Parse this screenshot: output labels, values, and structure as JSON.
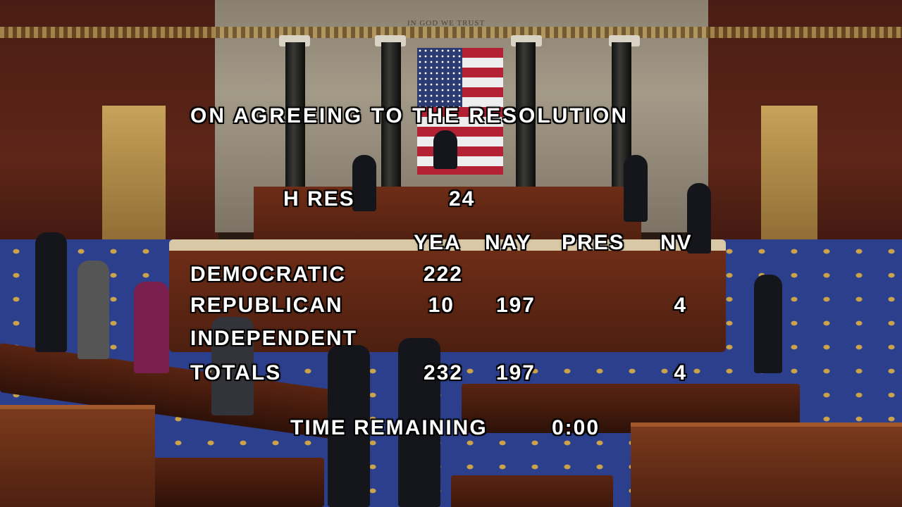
{
  "chamber": {
    "motto": "IN GOD WE TRUST"
  },
  "vote": {
    "question": "ON AGREEING TO THE RESOLUTION",
    "measure_type": "H RES",
    "measure_number": "24",
    "columns": [
      "YEA",
      "NAY",
      "PRES",
      "NV"
    ],
    "rows": [
      {
        "party": "DEMOCRATIC",
        "yea": "222",
        "nay": "",
        "pres": "",
        "nv": ""
      },
      {
        "party": "REPUBLICAN",
        "yea": "10",
        "nay": "197",
        "pres": "",
        "nv": "4"
      },
      {
        "party": "INDEPENDENT",
        "yea": "",
        "nay": "",
        "pres": "",
        "nv": ""
      },
      {
        "party": "TOTALS",
        "yea": "232",
        "nay": "197",
        "pres": "",
        "nv": "4"
      }
    ],
    "time_label": "TIME REMAINING",
    "time_value": "0:00"
  }
}
